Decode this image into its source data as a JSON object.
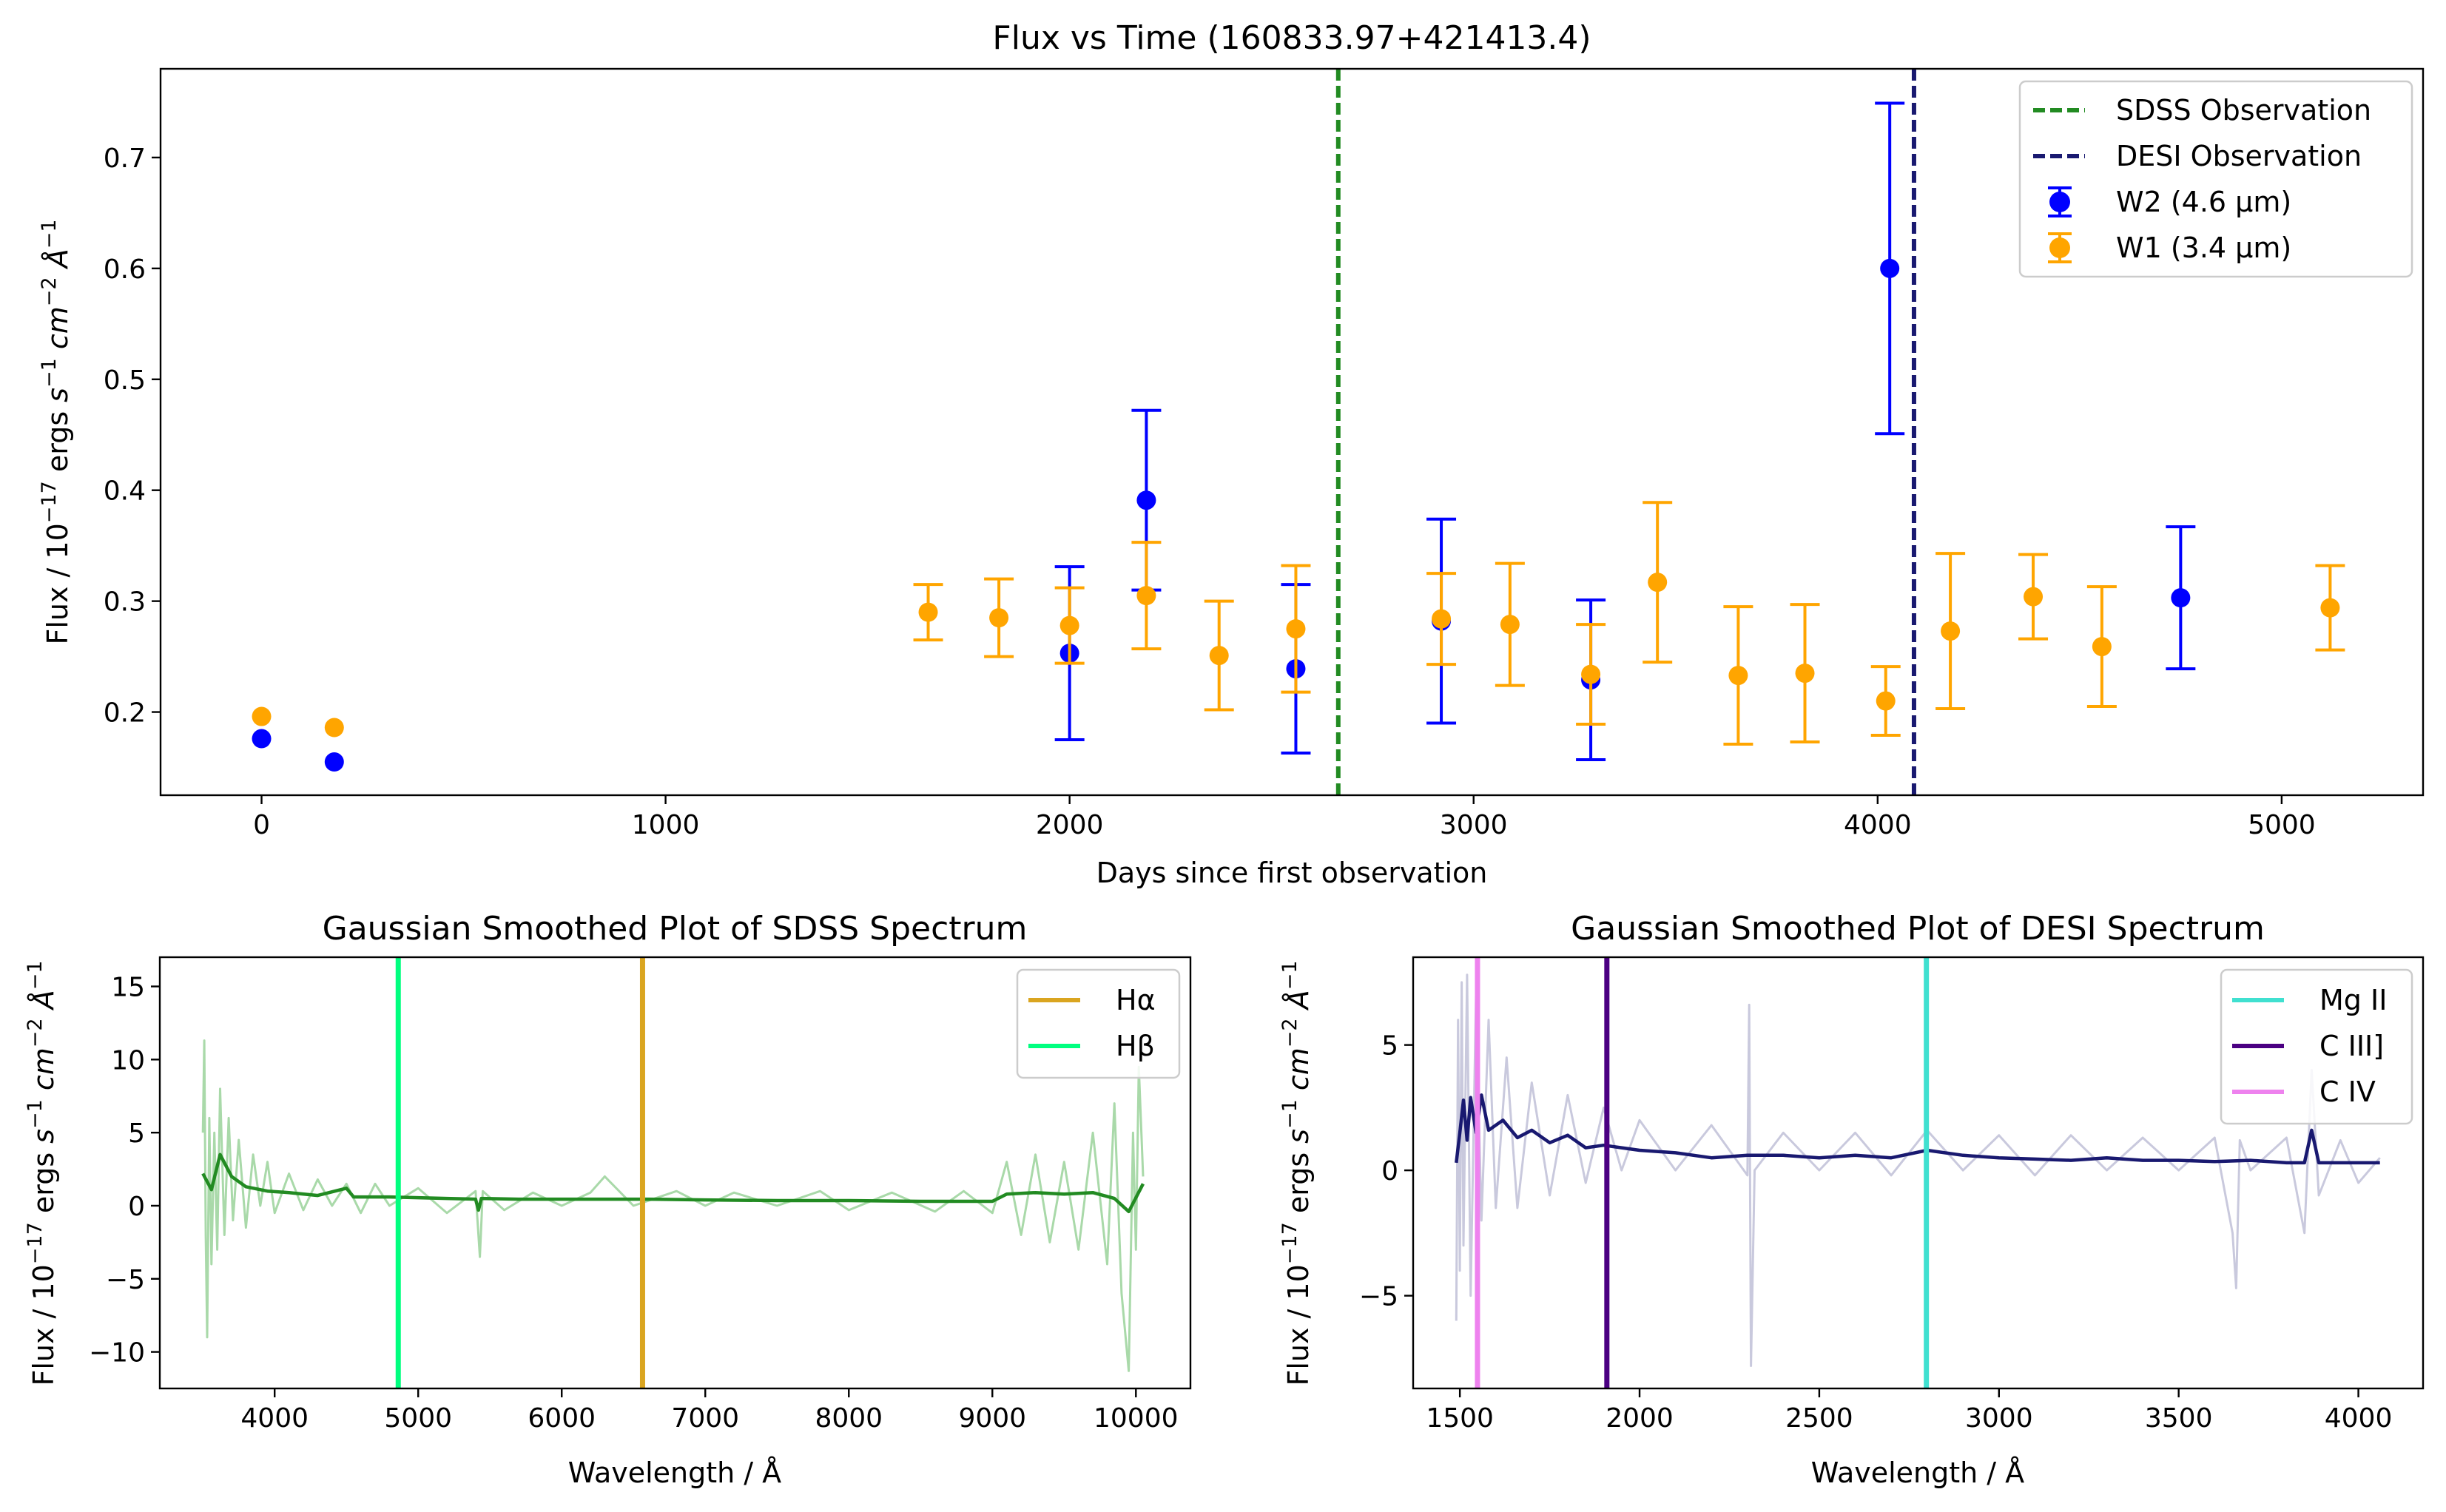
{
  "chart_data": [
    {
      "type": "scatter",
      "title": "Flux vs Time (160833.97+421413.4)",
      "xlabel": "Days since first observation",
      "ylabel": "Flux / 10^-17 ergs s^-1 cm^-2 Å^-1",
      "xlim": [
        -250,
        5350
      ],
      "ylim": [
        0.125,
        0.78
      ],
      "xticks": [
        0,
        1000,
        2000,
        3000,
        4000,
        5000
      ],
      "yticks": [
        0.2,
        0.3,
        0.4,
        0.5,
        0.6,
        0.7
      ],
      "legend_position": "top-right",
      "vlines": [
        {
          "name": "SDSS Observation",
          "x": 2665,
          "color": "#228B22"
        },
        {
          "name": "DESI Observation",
          "x": 4090,
          "color": "#191970"
        }
      ],
      "series": [
        {
          "name": "W2 (4.6 µm)",
          "color": "#0000FF",
          "points": [
            {
              "x": 0,
              "y": 0.176
            },
            {
              "x": 180,
              "y": 0.155
            },
            {
              "x": 2000,
              "y": 0.253,
              "err": 0.078
            },
            {
              "x": 2190,
              "y": 0.391,
              "err": 0.081
            },
            {
              "x": 2560,
              "y": 0.239,
              "err": 0.076
            },
            {
              "x": 2920,
              "y": 0.282,
              "err": 0.092
            },
            {
              "x": 3290,
              "y": 0.229,
              "err": 0.072
            },
            {
              "x": 4030,
              "y": 0.6,
              "err": 0.149
            },
            {
              "x": 4750,
              "y": 0.303,
              "err": 0.064
            }
          ]
        },
        {
          "name": "W1 (3.4 µm)",
          "color": "#FFA500",
          "points": [
            {
              "x": 0,
              "y": 0.196
            },
            {
              "x": 180,
              "y": 0.186
            },
            {
              "x": 1650,
              "y": 0.29,
              "err": 0.025
            },
            {
              "x": 1825,
              "y": 0.285,
              "err": 0.035
            },
            {
              "x": 2000,
              "y": 0.278,
              "err": 0.034
            },
            {
              "x": 2190,
              "y": 0.305,
              "err": 0.048
            },
            {
              "x": 2370,
              "y": 0.251,
              "err": 0.049
            },
            {
              "x": 2560,
              "y": 0.275,
              "err": 0.057
            },
            {
              "x": 2920,
              "y": 0.284,
              "err": 0.041
            },
            {
              "x": 3090,
              "y": 0.279,
              "err": 0.055
            },
            {
              "x": 3290,
              "y": 0.234,
              "err": 0.045
            },
            {
              "x": 3455,
              "y": 0.317,
              "err": 0.072
            },
            {
              "x": 3655,
              "y": 0.233,
              "err": 0.062
            },
            {
              "x": 3820,
              "y": 0.235,
              "err": 0.062
            },
            {
              "x": 4020,
              "y": 0.21,
              "err": 0.031
            },
            {
              "x": 4180,
              "y": 0.273,
              "err": 0.07
            },
            {
              "x": 4385,
              "y": 0.304,
              "err": 0.038
            },
            {
              "x": 4555,
              "y": 0.259,
              "err": 0.054
            },
            {
              "x": 5120,
              "y": 0.294,
              "err": 0.038
            }
          ]
        }
      ]
    },
    {
      "type": "line",
      "title": "Gaussian Smoothed Plot of SDSS Spectrum",
      "xlabel": "Wavelength / Å",
      "ylabel": "Flux / 10^-17 ergs s^-1 cm^-2 Å^-1",
      "xlim": [
        3200,
        10380
      ],
      "ylim": [
        -12.5,
        17
      ],
      "xticks": [
        4000,
        5000,
        6000,
        7000,
        8000,
        9000,
        10000
      ],
      "yticks": [
        -10,
        -5,
        0,
        5,
        10,
        15
      ],
      "legend_position": "top-right",
      "wavelength_range": [
        3500,
        10050
      ],
      "lines": [
        {
          "name": "Hα",
          "x": 6563,
          "color": "#DAA520"
        },
        {
          "name": "Hβ",
          "x": 4861,
          "color": "#00FF7F"
        }
      ],
      "series": [
        {
          "role": "smoothed",
          "color": "#228B22",
          "points": [
            [
              3500,
              2.2
            ],
            [
              3560,
              1.1
            ],
            [
              3620,
              3.5
            ],
            [
              3700,
              2.0
            ],
            [
              3800,
              1.3
            ],
            [
              3950,
              1.0
            ],
            [
              4100,
              0.9
            ],
            [
              4300,
              0.7
            ],
            [
              4500,
              1.2
            ],
            [
              4550,
              0.6
            ],
            [
              4800,
              0.6
            ],
            [
              5000,
              0.55
            ],
            [
              5200,
              0.5
            ],
            [
              5400,
              0.45
            ],
            [
              5420,
              -0.3
            ],
            [
              5440,
              0.5
            ],
            [
              5700,
              0.45
            ],
            [
              6000,
              0.45
            ],
            [
              6300,
              0.45
            ],
            [
              6600,
              0.45
            ],
            [
              7000,
              0.4
            ],
            [
              7500,
              0.35
            ],
            [
              8000,
              0.35
            ],
            [
              8500,
              0.3
            ],
            [
              9000,
              0.3
            ],
            [
              9100,
              0.8
            ],
            [
              9300,
              0.9
            ],
            [
              9500,
              0.8
            ],
            [
              9700,
              0.9
            ],
            [
              9850,
              0.5
            ],
            [
              9950,
              -0.4
            ],
            [
              10050,
              1.5
            ]
          ]
        },
        {
          "role": "raw",
          "color": "#A9D9A9",
          "points": [
            [
              3500,
              5
            ],
            [
              3510,
              11.3
            ],
            [
              3520,
              -2
            ],
            [
              3530,
              -9
            ],
            [
              3545,
              6
            ],
            [
              3560,
              -4
            ],
            [
              3580,
              5
            ],
            [
              3600,
              -3
            ],
            [
              3620,
              8
            ],
            [
              3650,
              -2
            ],
            [
              3680,
              6
            ],
            [
              3710,
              -1
            ],
            [
              3750,
              4.5
            ],
            [
              3800,
              -1.5
            ],
            [
              3850,
              3.5
            ],
            [
              3900,
              0
            ],
            [
              3950,
              3
            ],
            [
              4000,
              -0.5
            ],
            [
              4100,
              2.2
            ],
            [
              4200,
              -0.3
            ],
            [
              4300,
              1.8
            ],
            [
              4400,
              0
            ],
            [
              4500,
              1.5
            ],
            [
              4600,
              -0.5
            ],
            [
              4700,
              1.5
            ],
            [
              4800,
              0
            ],
            [
              5000,
              1.2
            ],
            [
              5200,
              -0.5
            ],
            [
              5400,
              1.0
            ],
            [
              5430,
              -3.5
            ],
            [
              5450,
              1.0
            ],
            [
              5600,
              -0.3
            ],
            [
              5800,
              0.9
            ],
            [
              6000,
              0
            ],
            [
              6200,
              0.9
            ],
            [
              6300,
              2
            ],
            [
              6500,
              0
            ],
            [
              6800,
              1.0
            ],
            [
              7000,
              0
            ],
            [
              7200,
              0.9
            ],
            [
              7500,
              0
            ],
            [
              7800,
              1.0
            ],
            [
              8000,
              -0.3
            ],
            [
              8300,
              0.9
            ],
            [
              8600,
              -0.4
            ],
            [
              8800,
              1.0
            ],
            [
              9000,
              -0.5
            ],
            [
              9100,
              3
            ],
            [
              9200,
              -2
            ],
            [
              9300,
              3.5
            ],
            [
              9400,
              -2.5
            ],
            [
              9500,
              3
            ],
            [
              9600,
              -3
            ],
            [
              9700,
              5
            ],
            [
              9800,
              -4
            ],
            [
              9850,
              7
            ],
            [
              9900,
              -6
            ],
            [
              9950,
              -11.3
            ],
            [
              9980,
              5
            ],
            [
              10000,
              -3
            ],
            [
              10020,
              9.5
            ],
            [
              10050,
              2
            ]
          ]
        }
      ]
    },
    {
      "type": "line",
      "title": "Gaussian Smoothed Plot of DESI Spectrum",
      "xlabel": "Wavelength / Å",
      "ylabel": "Flux / 10^-17 ergs s^-1 cm^-2 Å^-1",
      "xlim": [
        1370,
        4180
      ],
      "ylim": [
        -8.7,
        8.5
      ],
      "xticks": [
        1500,
        2000,
        2500,
        3000,
        3500,
        4000
      ],
      "yticks": [
        -5,
        0,
        5
      ],
      "legend_position": "top-right",
      "wavelength_range": [
        1490,
        4060
      ],
      "lines": [
        {
          "name": "Mg II",
          "x": 2798,
          "color": "#40E0D0"
        },
        {
          "name": "C III]",
          "x": 1909,
          "color": "#4B0082"
        },
        {
          "name": "C IV",
          "x": 1549,
          "color": "#EE82EE"
        }
      ],
      "series": [
        {
          "role": "smoothed",
          "color": "#191970",
          "points": [
            [
              1490,
              0.3
            ],
            [
              1500,
              1.5
            ],
            [
              1510,
              2.8
            ],
            [
              1520,
              1.2
            ],
            [
              1530,
              2.9
            ],
            [
              1545,
              1.5
            ],
            [
              1560,
              3.0
            ],
            [
              1580,
              1.6
            ],
            [
              1620,
              2.0
            ],
            [
              1660,
              1.3
            ],
            [
              1700,
              1.6
            ],
            [
              1750,
              1.1
            ],
            [
              1800,
              1.4
            ],
            [
              1850,
              0.9
            ],
            [
              1900,
              1.0
            ],
            [
              1950,
              0.9
            ],
            [
              2000,
              0.8
            ],
            [
              2100,
              0.7
            ],
            [
              2200,
              0.5
            ],
            [
              2300,
              0.6
            ],
            [
              2400,
              0.6
            ],
            [
              2500,
              0.5
            ],
            [
              2600,
              0.6
            ],
            [
              2700,
              0.5
            ],
            [
              2800,
              0.8
            ],
            [
              2900,
              0.6
            ],
            [
              3000,
              0.5
            ],
            [
              3100,
              0.45
            ],
            [
              3200,
              0.4
            ],
            [
              3300,
              0.5
            ],
            [
              3400,
              0.4
            ],
            [
              3500,
              0.4
            ],
            [
              3600,
              0.35
            ],
            [
              3700,
              0.4
            ],
            [
              3800,
              0.3
            ],
            [
              3850,
              0.3
            ],
            [
              3870,
              1.6
            ],
            [
              3890,
              0.3
            ],
            [
              4000,
              0.3
            ],
            [
              4060,
              0.3
            ]
          ]
        },
        {
          "role": "raw",
          "color": "#C9C9DD",
          "points": [
            [
              1490,
              -6
            ],
            [
              1495,
              6
            ],
            [
              1500,
              -4
            ],
            [
              1505,
              7.5
            ],
            [
              1510,
              -3
            ],
            [
              1520,
              7.8
            ],
            [
              1530,
              -5
            ],
            [
              1545,
              7
            ],
            [
              1560,
              -2
            ],
            [
              1580,
              6
            ],
            [
              1600,
              -1.5
            ],
            [
              1630,
              4.5
            ],
            [
              1660,
              -1.5
            ],
            [
              1700,
              3.5
            ],
            [
              1750,
              -1
            ],
            [
              1800,
              3
            ],
            [
              1850,
              -0.5
            ],
            [
              1900,
              2.5
            ],
            [
              1950,
              0
            ],
            [
              2000,
              2
            ],
            [
              2100,
              0
            ],
            [
              2200,
              1.8
            ],
            [
              2300,
              -0.2
            ],
            [
              2305,
              6.6
            ],
            [
              2310,
              -7.8
            ],
            [
              2320,
              0
            ],
            [
              2400,
              1.5
            ],
            [
              2500,
              0
            ],
            [
              2600,
              1.5
            ],
            [
              2700,
              -0.2
            ],
            [
              2800,
              1.6
            ],
            [
              2900,
              0
            ],
            [
              3000,
              1.4
            ],
            [
              3100,
              -0.2
            ],
            [
              3200,
              1.4
            ],
            [
              3300,
              0
            ],
            [
              3400,
              1.3
            ],
            [
              3500,
              0
            ],
            [
              3600,
              1.3
            ],
            [
              3650,
              -2.5
            ],
            [
              3660,
              -4.7
            ],
            [
              3670,
              1.2
            ],
            [
              3700,
              0
            ],
            [
              3800,
              1.3
            ],
            [
              3850,
              -2.5
            ],
            [
              3870,
              4
            ],
            [
              3890,
              -1
            ],
            [
              3950,
              1.2
            ],
            [
              4000,
              -0.5
            ],
            [
              4060,
              0.5
            ]
          ]
        }
      ]
    }
  ]
}
